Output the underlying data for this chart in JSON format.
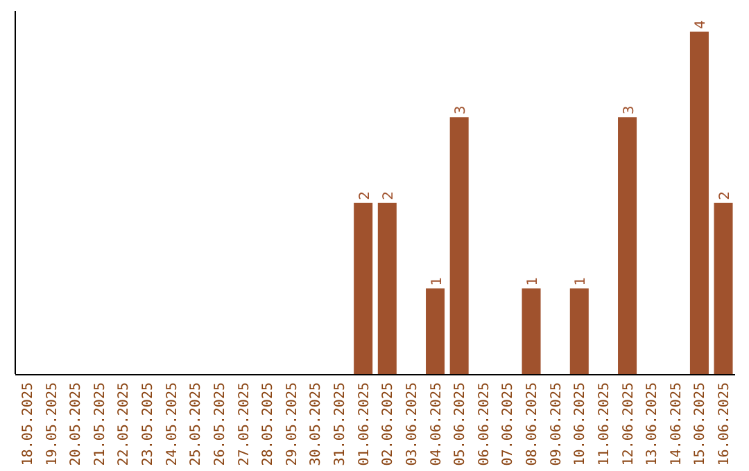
{
  "chart_data": {
    "type": "bar",
    "categories": [
      "18.05.2025",
      "19.05.2025",
      "20.05.2025",
      "21.05.2025",
      "22.05.2025",
      "23.05.2025",
      "24.05.2025",
      "25.05.2025",
      "26.05.2025",
      "27.05.2025",
      "28.05.2025",
      "29.05.2025",
      "30.05.2025",
      "31.05.2025",
      "01.06.2025",
      "02.06.2025",
      "03.06.2025",
      "04.06.2025",
      "05.06.2025",
      "06.06.2025",
      "07.06.2025",
      "08.06.2025",
      "09.06.2025",
      "10.06.2025",
      "11.06.2025",
      "12.06.2025",
      "13.06.2025",
      "14.06.2025",
      "15.06.2025",
      "16.06.2025"
    ],
    "values": [
      null,
      null,
      null,
      null,
      null,
      null,
      null,
      null,
      null,
      null,
      null,
      null,
      null,
      null,
      2,
      2,
      null,
      1,
      3,
      null,
      null,
      1,
      null,
      1,
      null,
      3,
      null,
      null,
      4,
      2
    ],
    "data_labels": true,
    "color": "#a0522d"
  }
}
